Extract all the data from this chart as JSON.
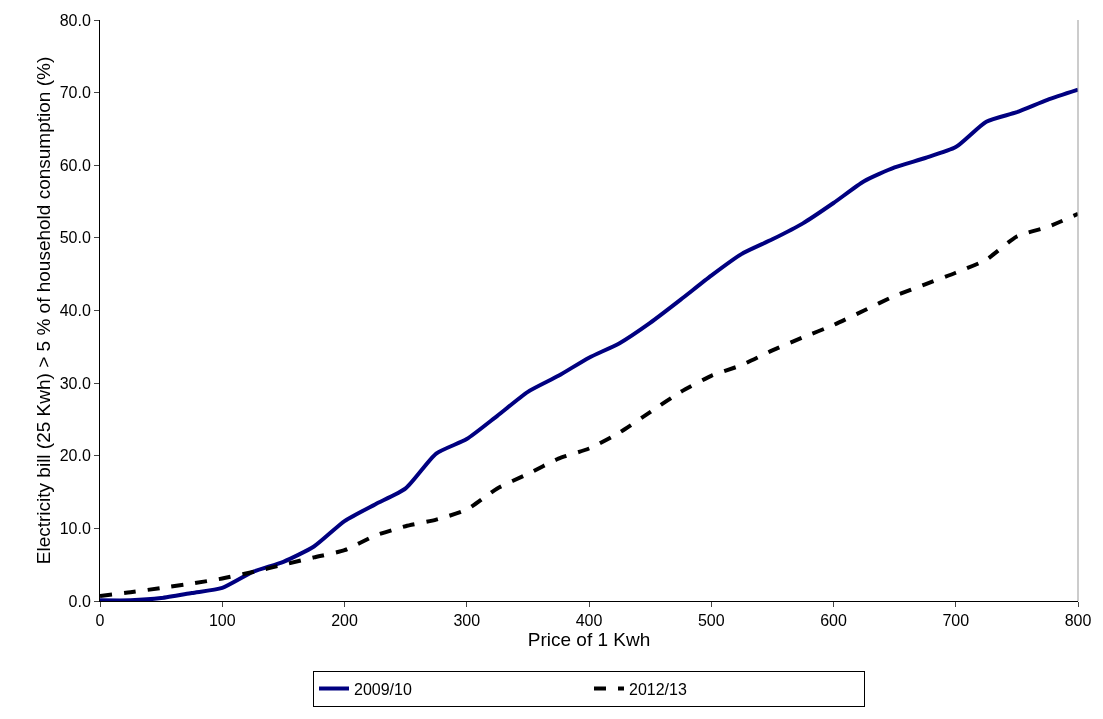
{
  "chart_data": {
    "type": "line",
    "xlabel": "Price of 1 Kwh",
    "ylabel": "Electricity bill (25 Kwh) > 5 % of household consumption (%)",
    "x": [
      0,
      25,
      50,
      75,
      100,
      125,
      150,
      175,
      200,
      225,
      250,
      275,
      300,
      325,
      350,
      375,
      400,
      425,
      450,
      475,
      500,
      525,
      550,
      575,
      600,
      625,
      650,
      675,
      700,
      725,
      750,
      775,
      800
    ],
    "series": [
      {
        "name": "2009/10",
        "color": "#000080",
        "line_style": "solid",
        "values": [
          0.1,
          0.1,
          0.4,
          1.1,
          1.8,
          4.0,
          5.4,
          7.5,
          11.0,
          13.3,
          15.5,
          20.3,
          22.3,
          25.5,
          28.8,
          31.0,
          33.5,
          35.5,
          38.3,
          41.5,
          44.8,
          47.8,
          49.8,
          52.0,
          54.8,
          57.8,
          59.7,
          61.0,
          62.5,
          66.0,
          67.3,
          69.0,
          70.4
        ]
      },
      {
        "name": "2012/13",
        "color": "#000000",
        "line_style": "dashed",
        "values": [
          0.7,
          1.2,
          1.8,
          2.4,
          3.1,
          4.0,
          5.0,
          6.0,
          7.0,
          9.0,
          10.3,
          11.2,
          12.6,
          15.5,
          17.5,
          19.6,
          21.0,
          23.2,
          26.0,
          28.8,
          31.0,
          32.5,
          34.5,
          36.3,
          38.0,
          40.0,
          42.0,
          43.6,
          45.2,
          47.0,
          50.2,
          51.5,
          53.3
        ]
      }
    ],
    "xlim": [
      0,
      800
    ],
    "xticks": [
      0,
      100,
      200,
      300,
      400,
      500,
      600,
      700,
      800
    ],
    "ylim": [
      0,
      80
    ],
    "yticks": [
      {
        "value": 0,
        "label": "0.0"
      },
      {
        "value": 10,
        "label": "10.0"
      },
      {
        "value": 20,
        "label": "20.0"
      },
      {
        "value": 30,
        "label": "30.0"
      },
      {
        "value": 40,
        "label": "40.0"
      },
      {
        "value": 50,
        "label": "50.0"
      },
      {
        "value": 60,
        "label": "60.0"
      },
      {
        "value": 70,
        "label": "70.0"
      },
      {
        "value": 80,
        "label": "80.0"
      }
    ],
    "legend": "bottom",
    "marker": "none"
  }
}
